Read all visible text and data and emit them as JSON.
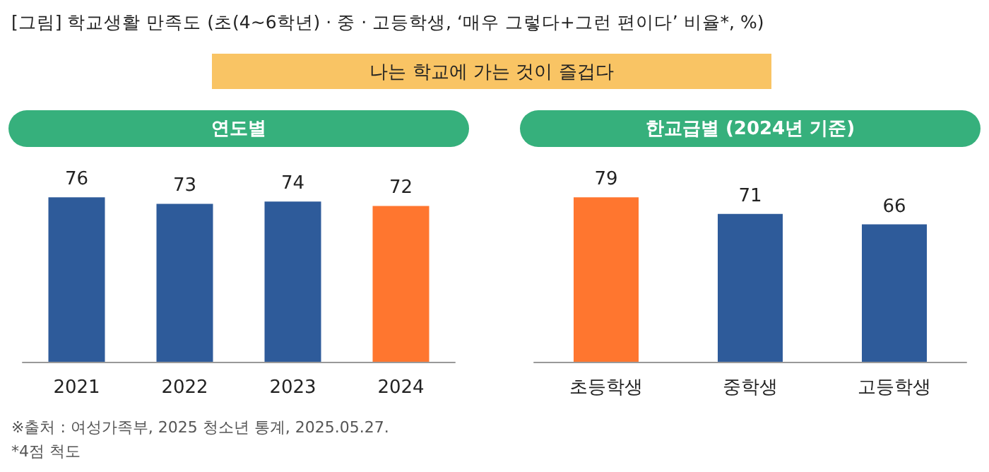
{
  "chart_data": [
    {
      "type": "other",
      "title": "[그림] 학교생활 만족도 (초(4~6학년) · 중 · 고등학생, ‘매우 그렇다+그런 편이다’ 비율*, %)",
      "subtitle": "나는 학교에 가는 것이 즐겁다",
      "annotations": [
        "※출처 : 여성가족부, 2025 청소년 통계, 2025.05.27.",
        "*4점 척도"
      ]
    },
    {
      "type": "bar",
      "title": "연도별",
      "categories": [
        "2021",
        "2022",
        "2023",
        "2024"
      ],
      "values": [
        76,
        73,
        74,
        72
      ],
      "colors": [
        "#2e5b9a",
        "#2e5b9a",
        "#2e5b9a",
        "#ff762f"
      ],
      "data_labels": true
    },
    {
      "type": "bar",
      "title": "한교급별 (2024년 기준)",
      "categories": [
        "초등학생",
        "중학생",
        "고등학생"
      ],
      "values": [
        79,
        71,
        66
      ],
      "colors": [
        "#ff762f",
        "#2e5b9a",
        "#2e5b9a"
      ],
      "data_labels": true
    }
  ]
}
